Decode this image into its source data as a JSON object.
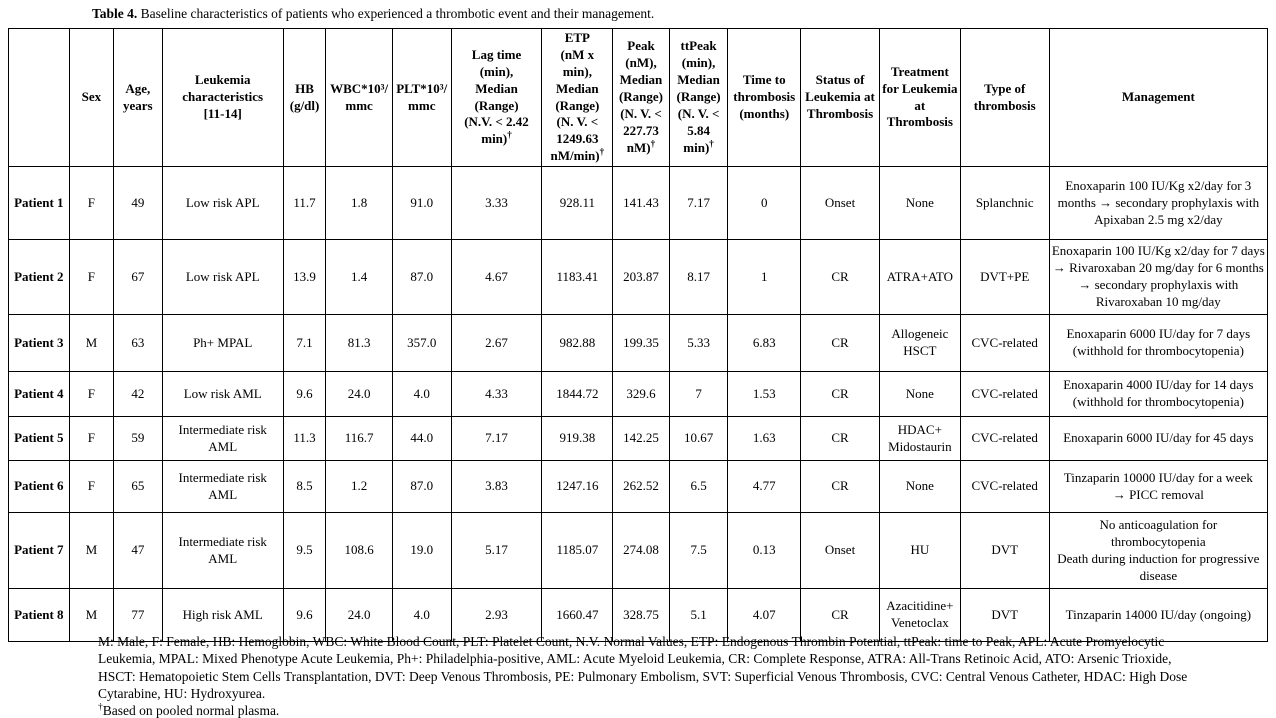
{
  "caption": {
    "label": "Table 4.",
    "text": "Baseline characteristics of patients who experienced a thrombotic event and their management."
  },
  "table": {
    "columns": [
      {
        "id": "patient",
        "label": ""
      },
      {
        "id": "sex",
        "label": "Sex"
      },
      {
        "id": "age",
        "label": "Age,\nyears"
      },
      {
        "id": "leukemia-characteristics",
        "label": "Leukemia\ncharacteristics\n[11-14]"
      },
      {
        "id": "hb",
        "label": "HB\n(g/dl)"
      },
      {
        "id": "wbc",
        "label": "WBC*10³/\nmmc"
      },
      {
        "id": "plt",
        "label": "PLT*10³/\nmmc"
      },
      {
        "id": "lag-time",
        "label": "Lag time\n(min),\nMedian\n(Range)\n(N.V. < 2.42\nmin)†"
      },
      {
        "id": "etp",
        "label": "ETP\n(nM x min),\nMedian\n(Range)\n(N. V. <\n1249.63\nnM/min)†"
      },
      {
        "id": "peak",
        "label": "Peak (nM),\nMedian\n(Range)\n(N. V. <\n227.73\nnM)†"
      },
      {
        "id": "ttpeak",
        "label": "ttPeak\n(min),\nMedian\n(Range)\n(N. V. <\n5.84 min)†"
      },
      {
        "id": "time-to-thrombosis",
        "label": "Time to\nthrombosis\n(months)"
      },
      {
        "id": "status-of-leukemia",
        "label": "Status of\nLeukemia at\nThrombosis"
      },
      {
        "id": "treatment-for-leukemia",
        "label": "Treatment\nfor Leukemia\nat\nThrombosis"
      },
      {
        "id": "type-of-thrombosis",
        "label": "Type of\nthrombosis"
      },
      {
        "id": "management",
        "label": "Management"
      }
    ],
    "rows": [
      {
        "cells": [
          "Patient 1",
          "F",
          "49",
          "Low risk APL",
          "11.7",
          "1.8",
          "91.0",
          "3.33",
          "928.11",
          "141.43",
          "7.17",
          "0",
          "Onset",
          "None",
          "Splanchnic",
          "Enoxaparin 100 IU/Kg x2/day for 3 months → secondary prophylaxis with Apixaban 2.5 mg x2/day"
        ]
      },
      {
        "cells": [
          "Patient 2",
          "F",
          "67",
          "Low risk APL",
          "13.9",
          "1.4",
          "87.0",
          "4.67",
          "1183.41",
          "203.87",
          "8.17",
          "1",
          "CR",
          "ATRA+ATO",
          "DVT+PE",
          "Enoxaparin 100 IU/Kg x2/day for 7 days → Rivaroxaban 20 mg/day for 6 months → secondary prophylaxis with Rivaroxaban 10 mg/day"
        ]
      },
      {
        "cells": [
          "Patient 3",
          "M",
          "63",
          "Ph+ MPAL",
          "7.1",
          "81.3",
          "357.0",
          "2.67",
          "982.88",
          "199.35",
          "5.33",
          "6.83",
          "CR",
          "Allogeneic HSCT",
          "CVC-related",
          "Enoxaparin 6000 IU/day for 7 days (withhold for thrombocytopenia)"
        ]
      },
      {
        "cells": [
          "Patient 4",
          "F",
          "42",
          "Low risk AML",
          "9.6",
          "24.0",
          "4.0",
          "4.33",
          "1844.72",
          "329.6",
          "7",
          "1.53",
          "CR",
          "None",
          "CVC-related",
          "Enoxaparin 4000 IU/day for 14 days (withhold for thrombocytopenia)"
        ]
      },
      {
        "cells": [
          "Patient 5",
          "F",
          "59",
          "Intermediate risk AML",
          "11.3",
          "116.7",
          "44.0",
          "7.17",
          "919.38",
          "142.25",
          "10.67",
          "1.63",
          "CR",
          "HDAC+ Midostaurin",
          "CVC-related",
          "Enoxaparin 6000 IU/day for 45 days"
        ]
      },
      {
        "cells": [
          "Patient 6",
          "F",
          "65",
          "Intermediate risk AML",
          "8.5",
          "1.2",
          "87.0",
          "3.83",
          "1247.16",
          "262.52",
          "6.5",
          "4.77",
          "CR",
          "None",
          "CVC-related",
          "Tinzaparin 10000 IU/day for a week\n→ PICC removal"
        ]
      },
      {
        "cells": [
          "Patient 7",
          "M",
          "47",
          "Intermediate risk AML",
          "9.5",
          "108.6",
          "19.0",
          "5.17",
          "1185.07",
          "274.08",
          "7.5",
          "0.13",
          "Onset",
          "HU",
          "DVT",
          "No anticoagulation for thrombocytopenia\nDeath during induction for progressive disease"
        ]
      },
      {
        "cells": [
          "Patient 8",
          "M",
          "77",
          "High risk AML",
          "9.6",
          "24.0",
          "4.0",
          "2.93",
          "1660.47",
          "328.75",
          "5.1",
          "4.07",
          "CR",
          "Azacitidine+ Venetoclax",
          "DVT",
          "Tinzaparin 14000 IU/day (ongoing)"
        ]
      }
    ]
  },
  "footnotes": {
    "abbreviations": "M: Male, F: Female, HB: Hemoglobin, WBC: White Blood Count, PLT: Platelet Count, N.V. Normal Values, ETP: Endogenous Thrombin Potential, ttPeak: time to Peak, APL: Acute Promyelocytic Leukemia, MPAL: Mixed Phenotype Acute Leukemia, Ph+: Philadelphia-positive,  AML: Acute Myeloid Leukemia, CR: Complete Response, ATRA: All-Trans Retinoic Acid, ATO: Arsenic Trioxide, HSCT: Hematopoietic Stem Cells Transplantation, DVT: Deep Venous Thrombosis, PE: Pulmonary Embolism, SVT: Superficial Venous Thrombosis, CVC: Central Venous Catheter, HDAC: High Dose Cytarabine, HU: Hydroxyurea.",
    "dagger_note": "†Based on pooled normal plasma."
  }
}
